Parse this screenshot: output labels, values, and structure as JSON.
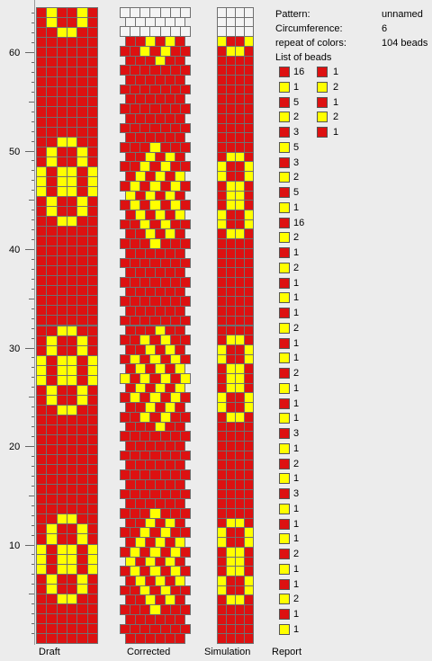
{
  "ruler": {
    "labels": [
      "60",
      "50",
      "40",
      "30",
      "20",
      "10"
    ]
  },
  "colors": {
    "red": "#dd1111",
    "yellow": "#ffff00",
    "blank": "#f4f4f4"
  },
  "columns": {
    "draft_label": "Draft",
    "corrected_label": "Corrected",
    "simulation_label": "Simulation",
    "report_label": "Report"
  },
  "info": {
    "pattern_label": "Pattern:",
    "pattern_value": "unnamed",
    "circumference_label": "Circumference:",
    "circumference_value": "6",
    "repeat_label": "repeat of colors:",
    "repeat_value": "104 beads",
    "list_label": "List of beads"
  },
  "bead_list": [
    {
      "color": "red",
      "count": "16"
    },
    {
      "color": "yellow",
      "count": "1"
    },
    {
      "color": "red",
      "count": "5"
    },
    {
      "color": "yellow",
      "count": "2"
    },
    {
      "color": "red",
      "count": "3"
    },
    {
      "color": "yellow",
      "count": "5"
    },
    {
      "color": "red",
      "count": "3"
    },
    {
      "color": "yellow",
      "count": "2"
    },
    {
      "color": "red",
      "count": "5"
    },
    {
      "color": "yellow",
      "count": "1"
    },
    {
      "color": "red",
      "count": "16"
    },
    {
      "color": "yellow",
      "count": "2"
    },
    {
      "color": "red",
      "count": "1"
    },
    {
      "color": "yellow",
      "count": "2"
    },
    {
      "color": "red",
      "count": "1"
    },
    {
      "color": "yellow",
      "count": "1"
    },
    {
      "color": "red",
      "count": "1"
    },
    {
      "color": "yellow",
      "count": "2"
    },
    {
      "color": "red",
      "count": "1"
    },
    {
      "color": "yellow",
      "count": "1"
    },
    {
      "color": "red",
      "count": "2"
    },
    {
      "color": "yellow",
      "count": "1"
    },
    {
      "color": "red",
      "count": "1"
    },
    {
      "color": "yellow",
      "count": "1"
    },
    {
      "color": "red",
      "count": "3"
    },
    {
      "color": "yellow",
      "count": "1"
    },
    {
      "color": "red",
      "count": "2"
    },
    {
      "color": "yellow",
      "count": "1"
    },
    {
      "color": "red",
      "count": "3"
    },
    {
      "color": "yellow",
      "count": "1"
    },
    {
      "color": "red",
      "count": "1"
    },
    {
      "color": "yellow",
      "count": "1"
    },
    {
      "color": "red",
      "count": "2"
    },
    {
      "color": "yellow",
      "count": "1"
    },
    {
      "color": "red",
      "count": "1"
    },
    {
      "color": "yellow",
      "count": "2"
    },
    {
      "color": "red",
      "count": "1"
    },
    {
      "color": "yellow",
      "count": "1"
    }
  ],
  "bead_list_2": [
    {
      "color": "red",
      "count": "1"
    },
    {
      "color": "yellow",
      "count": "2"
    },
    {
      "color": "red",
      "count": "1"
    },
    {
      "color": "yellow",
      "count": "2"
    },
    {
      "color": "red",
      "count": "1"
    }
  ]
}
